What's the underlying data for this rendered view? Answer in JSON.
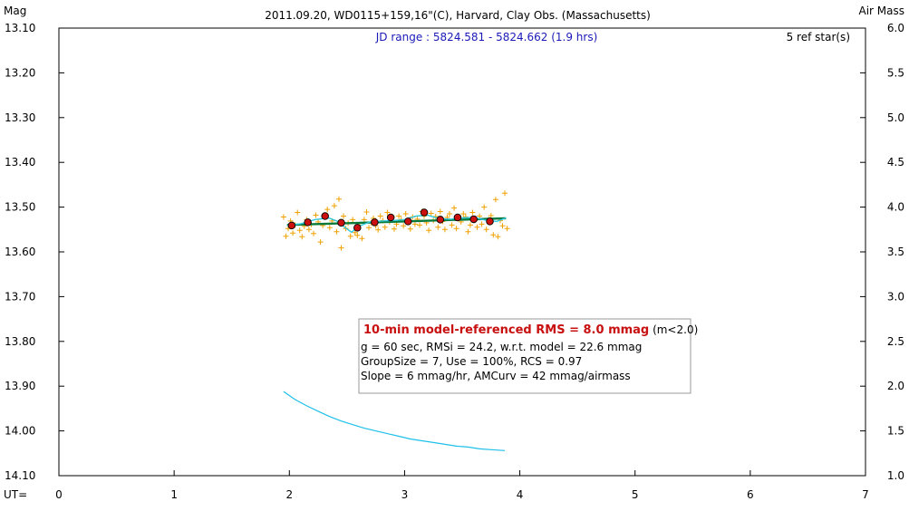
{
  "chart_data": {
    "type": "scatter",
    "title": "2011.09.20, WD0115+159,16\"(C), Harvard, Clay Obs. (Massachusetts)",
    "subtitle": "JD range : 5824.581 - 5824.662 (1.9 hrs)",
    "ref_stars": "5 ref star(s)",
    "left_axis": {
      "label": "Mag",
      "ylim": [
        14.1,
        13.1
      ],
      "ticks": [
        "13.10",
        "13.20",
        "13.30",
        "13.40",
        "13.50",
        "13.60",
        "13.70",
        "13.80",
        "13.90",
        "14.00",
        "14.10"
      ]
    },
    "right_axis": {
      "label": "Air Mass",
      "ylim": [
        1.0,
        6.0
      ],
      "ticks": [
        "6.0",
        "5.5",
        "5.0",
        "4.5",
        "4.0",
        "3.5",
        "3.0",
        "2.5",
        "2.0",
        "1.5",
        "1.0"
      ]
    },
    "x_axis": {
      "label": "UT=",
      "xlim": [
        0,
        7
      ],
      "ticks": [
        "0",
        "1",
        "2",
        "3",
        "4",
        "5",
        "6",
        "7"
      ]
    },
    "grid": false,
    "colors": {
      "raw": "#f0a000",
      "binned_fill": "#cc1010",
      "model": "#0a7a3a",
      "running": "#2ec9e0",
      "airmass": "#1ec0ea",
      "frame": "#000000",
      "info_title": "#c81010",
      "subtitle": "#1a1ab8"
    },
    "series": [
      {
        "kind": "raw",
        "points": [
          [
            1.95,
            13.522
          ],
          [
            1.97,
            13.565
          ],
          [
            1.99,
            13.548
          ],
          [
            2.01,
            13.531
          ],
          [
            2.03,
            13.558
          ],
          [
            2.05,
            13.54
          ],
          [
            2.07,
            13.512
          ],
          [
            2.09,
            13.552
          ],
          [
            2.11,
            13.566
          ],
          [
            2.13,
            13.543
          ],
          [
            2.15,
            13.528
          ],
          [
            2.17,
            13.55
          ],
          [
            2.19,
            13.539
          ],
          [
            2.21,
            13.559
          ],
          [
            2.23,
            13.518
          ],
          [
            2.25,
            13.533
          ],
          [
            2.27,
            13.578
          ],
          [
            2.29,
            13.541
          ],
          [
            2.31,
            13.522
          ],
          [
            2.33,
            13.505
          ],
          [
            2.35,
            13.546
          ],
          [
            2.37,
            13.531
          ],
          [
            2.39,
            13.497
          ],
          [
            2.41,
            13.555
          ],
          [
            2.43,
            13.482
          ],
          [
            2.45,
            13.591
          ],
          [
            2.47,
            13.52
          ],
          [
            2.49,
            13.548
          ],
          [
            2.51,
            13.536
          ],
          [
            2.53,
            13.565
          ],
          [
            2.55,
            13.528
          ],
          [
            2.57,
            13.557
          ],
          [
            2.59,
            13.563
          ],
          [
            2.61,
            13.54
          ],
          [
            2.63,
            13.57
          ],
          [
            2.65,
            13.528
          ],
          [
            2.67,
            13.511
          ],
          [
            2.69,
            13.546
          ],
          [
            2.71,
            13.535
          ],
          [
            2.73,
            13.525
          ],
          [
            2.75,
            13.542
          ],
          [
            2.77,
            13.551
          ],
          [
            2.79,
            13.52
          ],
          [
            2.81,
            13.53
          ],
          [
            2.83,
            13.545
          ],
          [
            2.85,
            13.512
          ],
          [
            2.87,
            13.533
          ],
          [
            2.89,
            13.521
          ],
          [
            2.91,
            13.549
          ],
          [
            2.93,
            13.538
          ],
          [
            2.95,
            13.52
          ],
          [
            2.97,
            13.528
          ],
          [
            2.99,
            13.542
          ],
          [
            3.01,
            13.515
          ],
          [
            3.03,
            13.532
          ],
          [
            3.05,
            13.549
          ],
          [
            3.07,
            13.522
          ],
          [
            3.09,
            13.538
          ],
          [
            3.11,
            13.527
          ],
          [
            3.13,
            13.54
          ],
          [
            3.15,
            13.51
          ],
          [
            3.17,
            13.52
          ],
          [
            3.19,
            13.535
          ],
          [
            3.21,
            13.552
          ],
          [
            3.23,
            13.514
          ],
          [
            3.25,
            13.53
          ],
          [
            3.27,
            13.521
          ],
          [
            3.29,
            13.545
          ],
          [
            3.31,
            13.51
          ],
          [
            3.33,
            13.532
          ],
          [
            3.35,
            13.55
          ],
          [
            3.37,
            13.523
          ],
          [
            3.39,
            13.515
          ],
          [
            3.41,
            13.54
          ],
          [
            3.43,
            13.502
          ],
          [
            3.45,
            13.548
          ],
          [
            3.47,
            13.525
          ],
          [
            3.49,
            13.533
          ],
          [
            3.51,
            13.515
          ],
          [
            3.53,
            13.522
          ],
          [
            3.55,
            13.555
          ],
          [
            3.57,
            13.54
          ],
          [
            3.59,
            13.512
          ],
          [
            3.61,
            13.53
          ],
          [
            3.63,
            13.545
          ],
          [
            3.65,
            13.52
          ],
          [
            3.67,
            13.538
          ],
          [
            3.69,
            13.5
          ],
          [
            3.71,
            13.55
          ],
          [
            3.73,
            13.528
          ],
          [
            3.75,
            13.519
          ],
          [
            3.77,
            13.562
          ],
          [
            3.79,
            13.483
          ],
          [
            3.81,
            13.566
          ],
          [
            3.83,
            13.53
          ],
          [
            3.85,
            13.542
          ],
          [
            3.87,
            13.469
          ],
          [
            3.89,
            13.548
          ]
        ]
      },
      {
        "kind": "binned",
        "points": [
          [
            2.02,
            13.541
          ],
          [
            2.16,
            13.534
          ],
          [
            2.31,
            13.52
          ],
          [
            2.45,
            13.535
          ],
          [
            2.59,
            13.546
          ],
          [
            2.74,
            13.534
          ],
          [
            2.88,
            13.523
          ],
          [
            3.03,
            13.532
          ],
          [
            3.17,
            13.512
          ],
          [
            3.31,
            13.528
          ],
          [
            3.46,
            13.523
          ],
          [
            3.6,
            13.527
          ],
          [
            3.74,
            13.532
          ]
        ]
      },
      {
        "kind": "model",
        "points": [
          [
            1.98,
            13.54
          ],
          [
            3.88,
            13.525
          ]
        ]
      },
      {
        "kind": "running",
        "points": [
          [
            1.98,
            13.541
          ],
          [
            2.1,
            13.537
          ],
          [
            2.22,
            13.528
          ],
          [
            2.34,
            13.524
          ],
          [
            2.42,
            13.532
          ],
          [
            2.48,
            13.545
          ],
          [
            2.54,
            13.556
          ],
          [
            2.6,
            13.543
          ],
          [
            2.7,
            13.533
          ],
          [
            2.8,
            13.531
          ],
          [
            2.9,
            13.53
          ],
          [
            3.0,
            13.528
          ],
          [
            3.1,
            13.52
          ],
          [
            3.2,
            13.518
          ],
          [
            3.3,
            13.526
          ],
          [
            3.4,
            13.527
          ],
          [
            3.5,
            13.524
          ],
          [
            3.6,
            13.523
          ],
          [
            3.7,
            13.529
          ],
          [
            3.8,
            13.532
          ],
          [
            3.88,
            13.524
          ]
        ]
      },
      {
        "kind": "airmass",
        "points": [
          [
            1.95,
            1.94
          ],
          [
            2.05,
            1.85
          ],
          [
            2.15,
            1.78
          ],
          [
            2.25,
            1.72
          ],
          [
            2.35,
            1.66
          ],
          [
            2.45,
            1.61
          ],
          [
            2.55,
            1.57
          ],
          [
            2.65,
            1.53
          ],
          [
            2.75,
            1.5
          ],
          [
            2.85,
            1.47
          ],
          [
            2.95,
            1.44
          ],
          [
            3.05,
            1.41
          ],
          [
            3.15,
            1.39
          ],
          [
            3.25,
            1.37
          ],
          [
            3.35,
            1.35
          ],
          [
            3.45,
            1.33
          ],
          [
            3.55,
            1.32
          ],
          [
            3.65,
            1.3
          ],
          [
            3.75,
            1.29
          ],
          [
            3.87,
            1.28
          ]
        ]
      }
    ],
    "info_box": {
      "title": "10-min model-referenced RMS = 8.0 mmag",
      "title_suffix": " (m<2.0)",
      "line2": "g = 60 sec, RMSi = 24.2, w.r.t. model = 22.6 mmag",
      "line3": "GroupSize = 7, Use = 100%, RCS = 0.97",
      "line4": "Slope = 6 mmag/hr, AMCurv = 42 mmag/airmass"
    }
  }
}
